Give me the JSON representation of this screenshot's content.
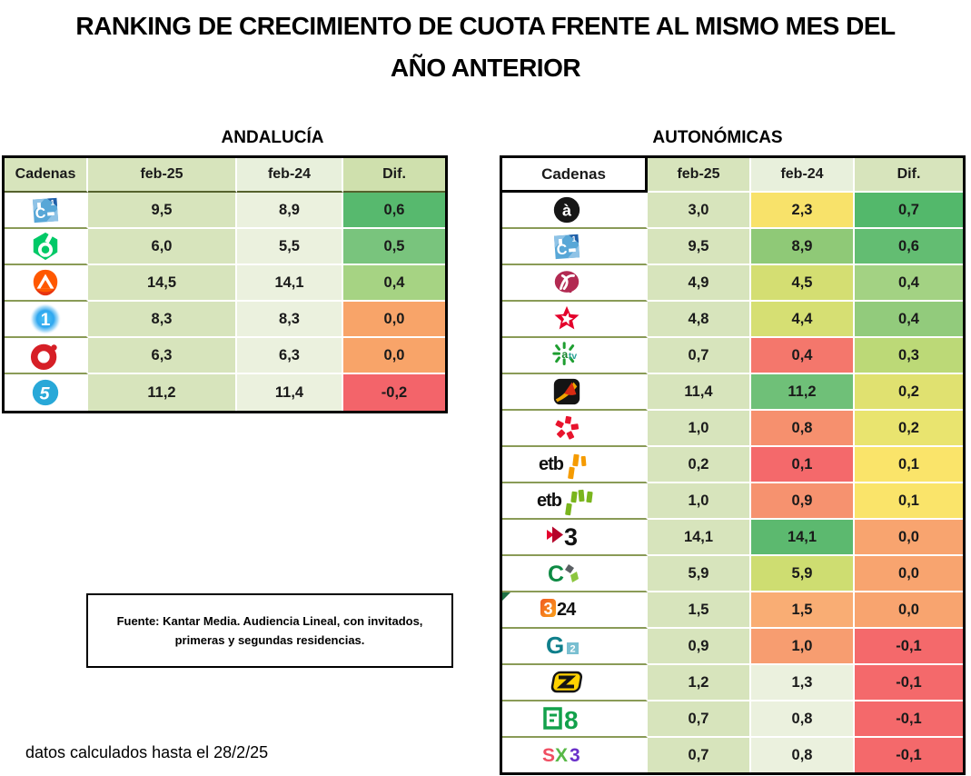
{
  "main_title": {
    "line1": "RANKING DE CRECIMIENTO DE CUOTA FRENTE AL MISMO MES DEL",
    "line2": "AÑO ANTERIOR"
  },
  "source_note": {
    "line1": "Fuente: Kantar Media. Audiencia Lineal, con invitados,",
    "line2": "primeras y segundas residencias."
  },
  "footer_note": "datos calculados hasta el 28/2/25",
  "palette": {
    "sage": "#d7e4bc",
    "pale": "#ebf1de",
    "table_border": "#000000",
    "row_line": "#8a9b57"
  },
  "tables": [
    {
      "title": "ANDALUCÍA",
      "headers": [
        "Cadenas",
        "feb-25",
        "feb-24",
        "Dif."
      ],
      "header_bgs": [
        "#d7e4bc",
        "#d7e4bc",
        "#e8f0dc",
        "#cfe0ad"
      ],
      "rows": [
        {
          "channel": "Canal Sur",
          "logo": "canalsur",
          "feb25": "9,5",
          "feb25_bg": "#d7e4bc",
          "feb24": "8,9",
          "feb24_bg": "#ebf1de",
          "dif": "0,6",
          "dif_bg": "#57b96e"
        },
        {
          "channel": "laSexta",
          "logo": "lasexta",
          "feb25": "6,0",
          "feb25_bg": "#d7e4bc",
          "feb24": "5,5",
          "feb24_bg": "#ebf1de",
          "dif": "0,5",
          "dif_bg": "#79c47d"
        },
        {
          "channel": "Antena 3",
          "logo": "antena3",
          "feb25": "14,5",
          "feb25_bg": "#d7e4bc",
          "feb24": "14,1",
          "feb24_bg": "#ebf1de",
          "dif": "0,4",
          "dif_bg": "#a6d383"
        },
        {
          "channel": "La 1",
          "logo": "la1",
          "feb25": "8,3",
          "feb25_bg": "#d7e4bc",
          "feb24": "8,3",
          "feb24_bg": "#ebf1de",
          "dif": "0,0",
          "dif_bg": "#f8a469"
        },
        {
          "channel": "Cuatro",
          "logo": "cuatro",
          "feb25": "6,3",
          "feb25_bg": "#d7e4bc",
          "feb24": "6,3",
          "feb24_bg": "#ebf1de",
          "dif": "0,0",
          "dif_bg": "#f8a469"
        },
        {
          "channel": "Telecinco",
          "logo": "telecinco",
          "feb25": "11,2",
          "feb25_bg": "#d7e4bc",
          "feb24": "11,4",
          "feb24_bg": "#ebf1de",
          "dif": "-0,2",
          "dif_bg": "#f3646a"
        }
      ]
    },
    {
      "title": "AUTONÓMICAS",
      "headers": [
        "Cadenas",
        "feb-25",
        "feb-24",
        "Dif."
      ],
      "header_bgs": [
        "#ffffff",
        "#d7e4bc",
        "#e8f0dc",
        "#d7e4bc"
      ],
      "rows": [
        {
          "channel": "À Punt",
          "logo": "apunt",
          "feb25": "3,0",
          "feb25_bg": "#d7e4bc",
          "feb24": "2,3",
          "feb24_bg": "#f8e26a",
          "dif": "0,7",
          "dif_bg": "#53b86b"
        },
        {
          "channel": "Canal Sur",
          "logo": "canalsur",
          "feb25": "9,5",
          "feb25_bg": "#d7e4bc",
          "feb24": "8,9",
          "feb24_bg": "#8fc977",
          "dif": "0,6",
          "dif_bg": "#63bd72"
        },
        {
          "channel": "Canal Extremadura",
          "logo": "extremadura",
          "feb25": "4,9",
          "feb25_bg": "#d7e4bc",
          "feb24": "4,5",
          "feb24_bg": "#d4de72",
          "dif": "0,4",
          "dif_bg": "#a3d283"
        },
        {
          "channel": "Telemadrid",
          "logo": "telemadrid",
          "feb25": "4,8",
          "feb25_bg": "#d7e4bc",
          "feb24": "4,4",
          "feb24_bg": "#d6df73",
          "dif": "0,4",
          "dif_bg": "#92cb7c"
        },
        {
          "channel": "Andalucía TV",
          "logo": "andaluciatv",
          "feb25": "0,7",
          "feb25_bg": "#d7e4bc",
          "feb24": "0,4",
          "feb24_bg": "#f4776c",
          "dif": "0,3",
          "dif_bg": "#bcd977"
        },
        {
          "channel": "Aragón TV",
          "logo": "aragontv",
          "feb25": "11,4",
          "feb25_bg": "#d7e4bc",
          "feb24": "11,2",
          "feb24_bg": "#6fc078",
          "dif": "0,2",
          "dif_bg": "#e0e170"
        },
        {
          "channel": "CMM",
          "logo": "cmm",
          "feb25": "1,0",
          "feb25_bg": "#d7e4bc",
          "feb24": "0,8",
          "feb24_bg": "#f6906e",
          "dif": "0,2",
          "dif_bg": "#e9e46f"
        },
        {
          "channel": "ETB1",
          "logo": "etb1",
          "feb25": "0,2",
          "feb25_bg": "#d7e4bc",
          "feb24": "0,1",
          "feb24_bg": "#f4696b",
          "dif": "0,1",
          "dif_bg": "#fae46a"
        },
        {
          "channel": "ETB2",
          "logo": "etb2",
          "feb25": "1,0",
          "feb25_bg": "#d7e4bc",
          "feb24": "0,9",
          "feb24_bg": "#f6926f",
          "dif": "0,1",
          "dif_bg": "#fae46a"
        },
        {
          "channel": "TV3",
          "logo": "tv3",
          "feb25": "14,1",
          "feb25_bg": "#d7e4bc",
          "feb24": "14,1",
          "feb24_bg": "#5cb96f",
          "dif": "0,0",
          "dif_bg": "#f8a46f"
        },
        {
          "channel": "Televisión Canaria",
          "logo": "tvcanaria",
          "feb25": "5,9",
          "feb25_bg": "#d7e4bc",
          "feb24": "5,9",
          "feb24_bg": "#cedd71",
          "dif": "0,0",
          "dif_bg": "#f8a46f"
        },
        {
          "channel": "3/24",
          "logo": "c324",
          "feb25": "1,5",
          "feb25_bg": "#d7e4bc",
          "feb24": "1,5",
          "feb24_bg": "#f9ad74",
          "dif": "0,0",
          "dif_bg": "#f8a46f",
          "marker": true
        },
        {
          "channel": "TVG2",
          "logo": "g2",
          "feb25": "0,9",
          "feb25_bg": "#d7e4bc",
          "feb24": "1,0",
          "feb24_bg": "#f79d70",
          "dif": "-0,1",
          "dif_bg": "#f4696b"
        },
        {
          "channel": "Esport3",
          "logo": "esport3",
          "feb25": "1,2",
          "feb25_bg": "#d7e4bc",
          "feb24": "1,3",
          "feb24_bg": "#ebf1de",
          "dif": "-0,1",
          "dif_bg": "#f4696b"
        },
        {
          "channel": "La 8",
          "logo": "la8",
          "feb25": "0,7",
          "feb25_bg": "#d7e4bc",
          "feb24": "0,8",
          "feb24_bg": "#ebf1de",
          "dif": "-0,1",
          "dif_bg": "#f4696b"
        },
        {
          "channel": "SX3",
          "logo": "sx3",
          "feb25": "0,7",
          "feb25_bg": "#d7e4bc",
          "feb24": "0,8",
          "feb24_bg": "#ebf1de",
          "dif": "-0,1",
          "dif_bg": "#f4696b"
        }
      ]
    }
  ],
  "chart_data": [
    {
      "type": "table",
      "title": "ANDALUCÍA",
      "columns": [
        "Cadenas",
        "feb-25",
        "feb-24",
        "Dif."
      ],
      "rows": [
        [
          "Canal Sur",
          9.5,
          8.9,
          0.6
        ],
        [
          "laSexta",
          6.0,
          5.5,
          0.5
        ],
        [
          "Antena 3",
          14.5,
          14.1,
          0.4
        ],
        [
          "La 1",
          8.3,
          8.3,
          0.0
        ],
        [
          "Cuatro",
          6.3,
          6.3,
          0.0
        ],
        [
          "Telecinco",
          11.2,
          11.4,
          -0.2
        ]
      ]
    },
    {
      "type": "table",
      "title": "AUTONÓMICAS",
      "columns": [
        "Cadenas",
        "feb-25",
        "feb-24",
        "Dif."
      ],
      "rows": [
        [
          "À Punt",
          3.0,
          2.3,
          0.7
        ],
        [
          "Canal Sur",
          9.5,
          8.9,
          0.6
        ],
        [
          "Canal Extremadura",
          4.9,
          4.5,
          0.4
        ],
        [
          "Telemadrid",
          4.8,
          4.4,
          0.4
        ],
        [
          "Andalucía TV",
          0.7,
          0.4,
          0.3
        ],
        [
          "Aragón TV",
          11.4,
          11.2,
          0.2
        ],
        [
          "CMM",
          1.0,
          0.8,
          0.2
        ],
        [
          "ETB1",
          0.2,
          0.1,
          0.1
        ],
        [
          "ETB2",
          1.0,
          0.9,
          0.1
        ],
        [
          "TV3",
          14.1,
          14.1,
          0.0
        ],
        [
          "Televisión Canaria",
          5.9,
          5.9,
          0.0
        ],
        [
          "3/24",
          1.5,
          1.5,
          0.0
        ],
        [
          "TVG2",
          0.9,
          1.0,
          -0.1
        ],
        [
          "Esport3",
          1.2,
          1.3,
          -0.1
        ],
        [
          "La 8",
          0.7,
          0.8,
          -0.1
        ],
        [
          "SX3",
          0.7,
          0.8,
          -0.1
        ]
      ]
    }
  ]
}
